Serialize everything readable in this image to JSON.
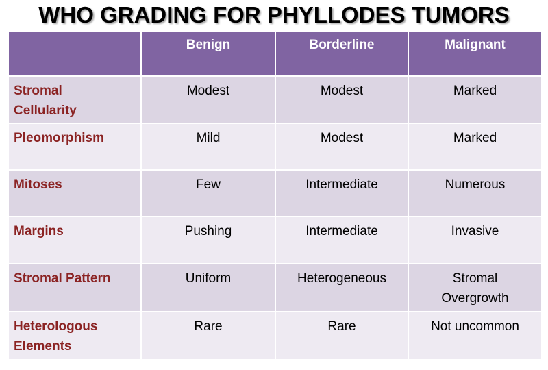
{
  "title": "WHO GRADING FOR PHYLLODES TUMORS",
  "colors": {
    "header_bg": "#8064a2",
    "row_odd_bg": "#dcd5e3",
    "row_even_bg": "#eeeaf2",
    "row_label_text": "#8b2323"
  },
  "table": {
    "columns": [
      "",
      "Benign",
      "Borderline",
      "Malignant"
    ],
    "rows": [
      {
        "label": [
          "Stromal",
          "Cellularity"
        ],
        "benign": "Modest",
        "borderline": "Modest",
        "malignant": [
          "Marked"
        ]
      },
      {
        "label": [
          "Pleomorphism"
        ],
        "benign": "Mild",
        "borderline": "Modest",
        "malignant": [
          "Marked"
        ]
      },
      {
        "label": [
          "Mitoses"
        ],
        "benign": "Few",
        "borderline": "Intermediate",
        "malignant": [
          "Numerous"
        ]
      },
      {
        "label": [
          "Margins"
        ],
        "benign": "Pushing",
        "borderline": "Intermediate",
        "malignant": [
          "Invasive"
        ]
      },
      {
        "label": [
          "Stromal Pattern"
        ],
        "benign": "Uniform",
        "borderline": "Heterogeneous",
        "malignant": [
          "Stromal",
          "Overgrowth"
        ]
      },
      {
        "label": [
          "Heterologous",
          "Elements"
        ],
        "benign": "Rare",
        "borderline": "Rare",
        "malignant": [
          "Not uncommon"
        ]
      }
    ]
  }
}
